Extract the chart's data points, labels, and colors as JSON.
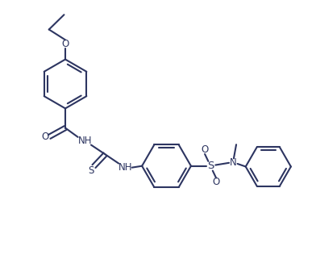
{
  "bg_color": "#ffffff",
  "line_color": "#2d3561",
  "line_width": 1.5,
  "font_size": 8.5,
  "figsize": [
    3.92,
    3.21
  ],
  "dpi": 100,
  "xlim": [
    0,
    10
  ],
  "ylim": [
    0,
    8.2
  ]
}
